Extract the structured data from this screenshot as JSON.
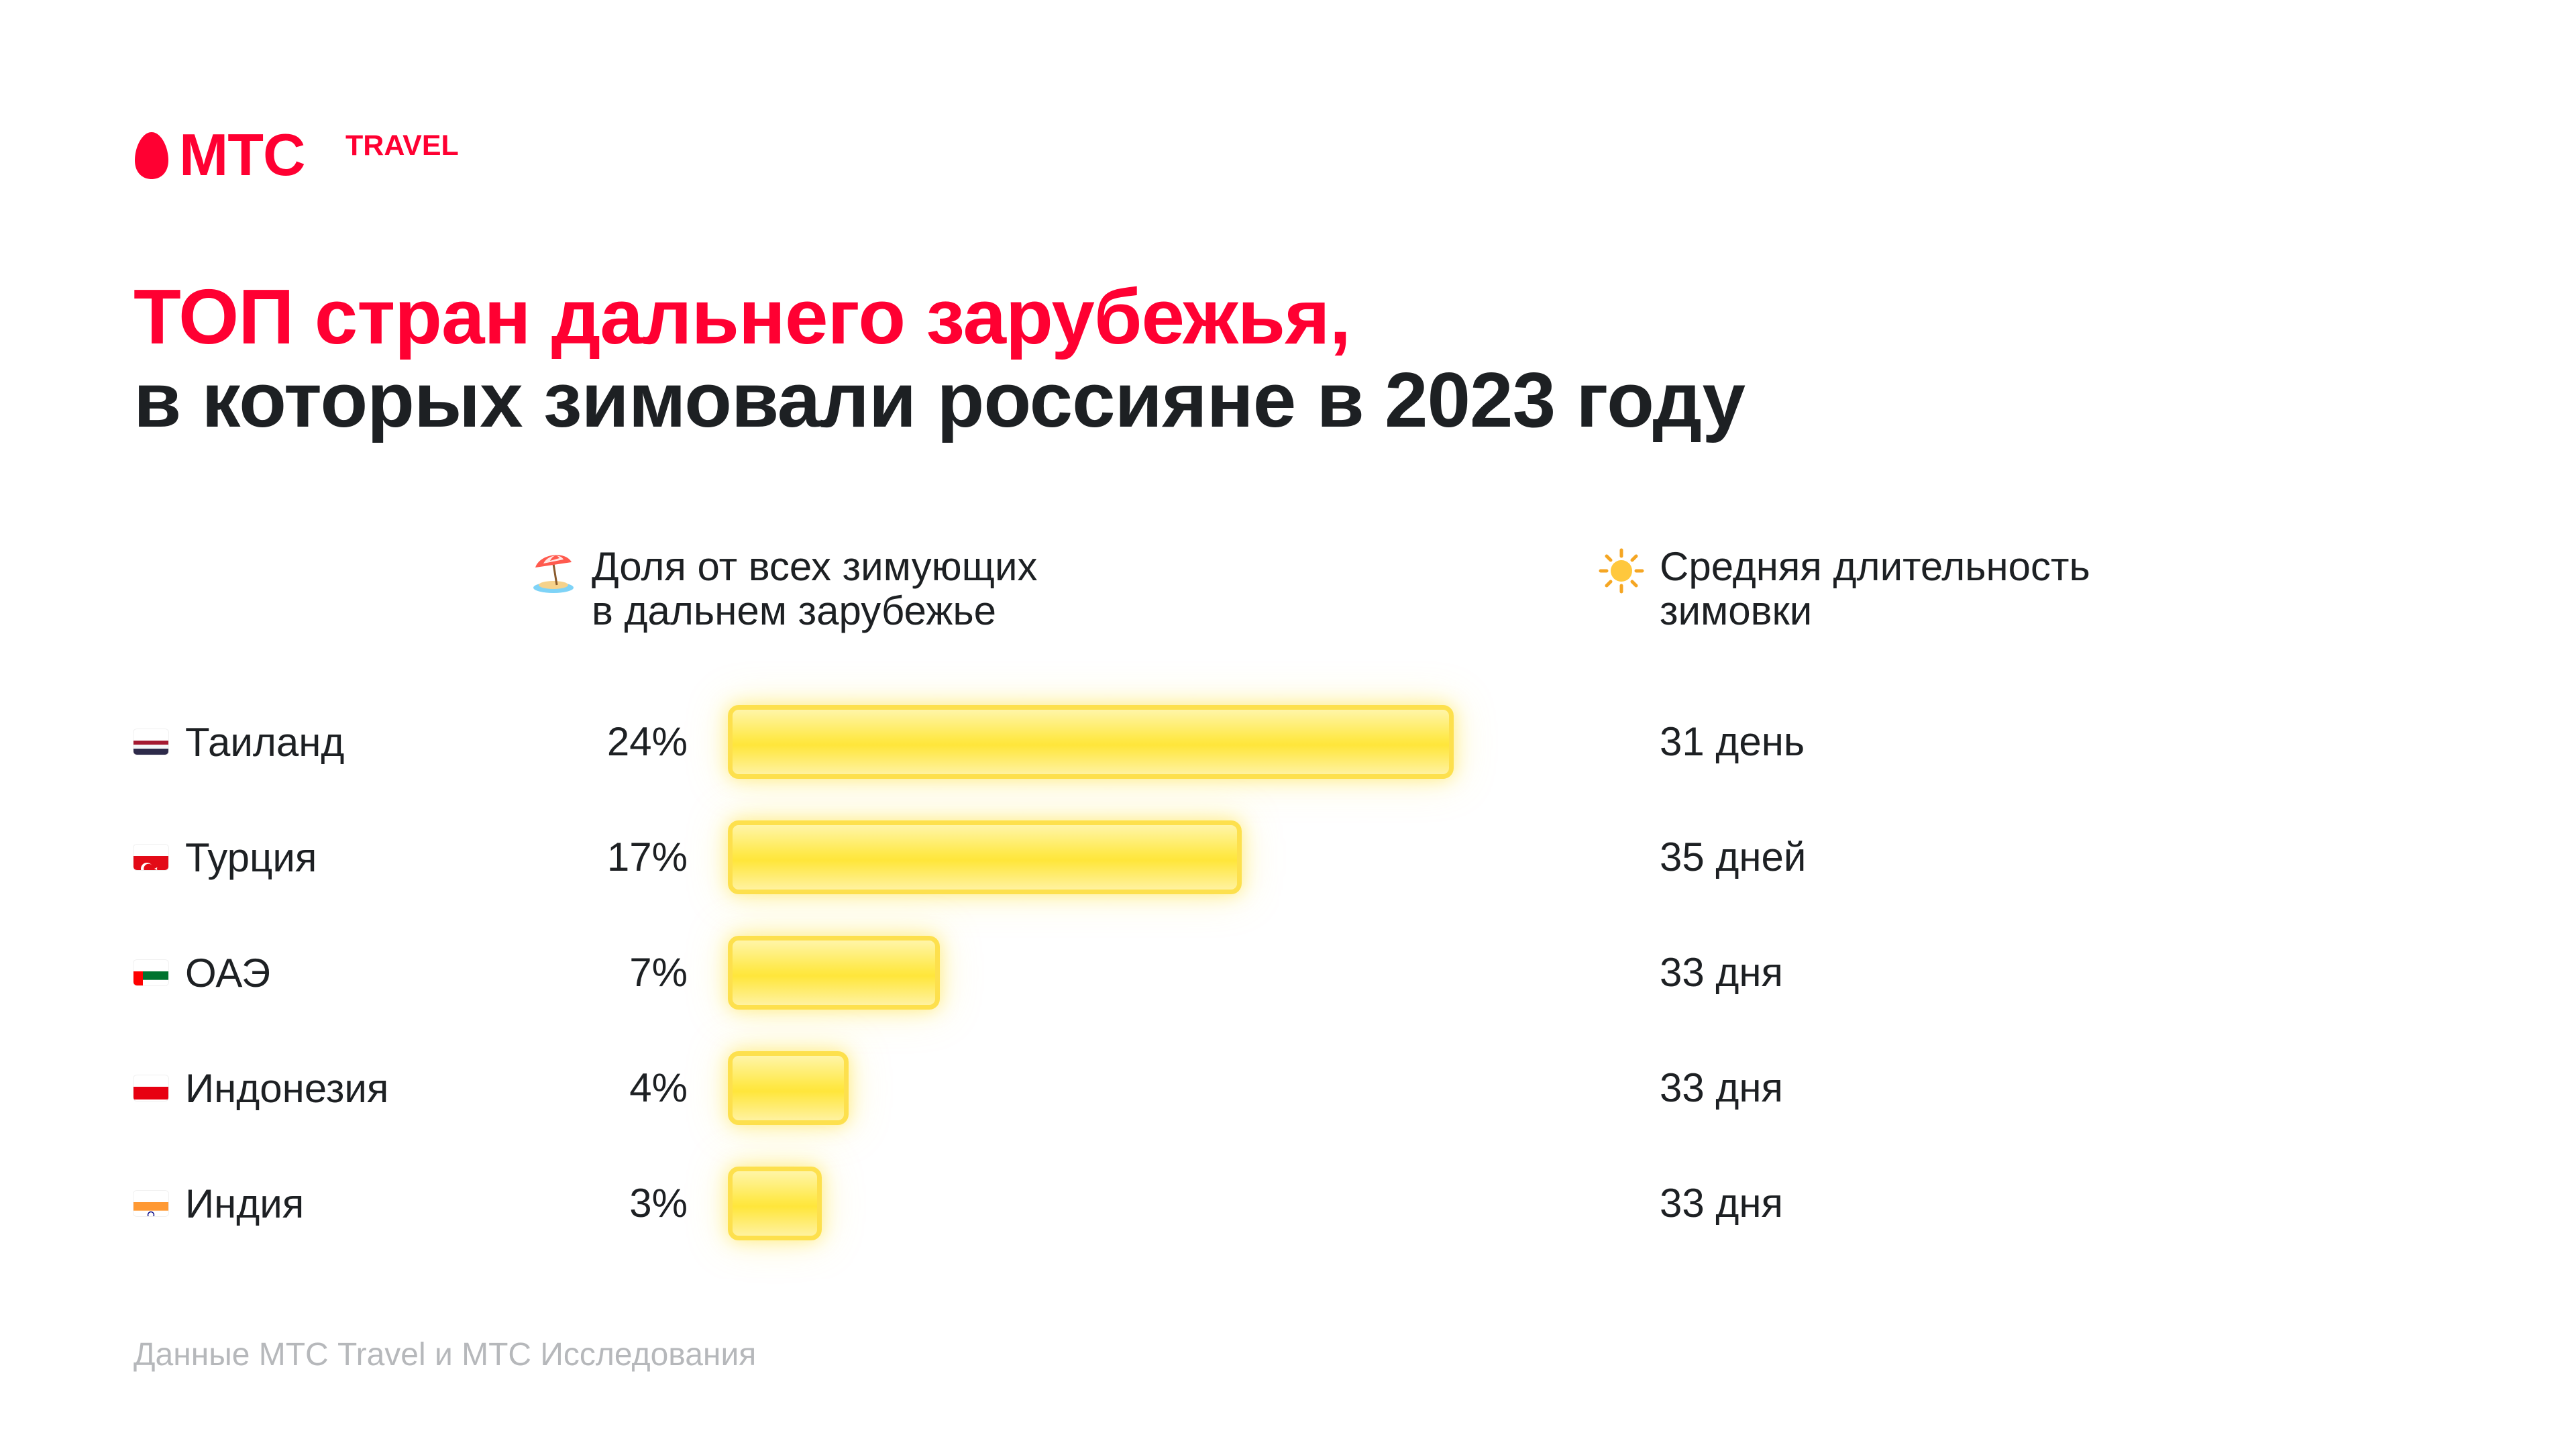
{
  "brand": {
    "name": "МТС",
    "suffix": "TRAVEL",
    "color": "#ff0032"
  },
  "title": {
    "line1": "ТОП стран дальнего зарубежья,",
    "line2": "в которых зимовали россияне в 2023 году",
    "line1_color": "#ff0032",
    "line2_color": "#1d2023"
  },
  "headers": {
    "share": {
      "icon": "beach-umbrella-icon",
      "line1": "Доля от всех зимующих",
      "line2": "в дальнем зарубежье"
    },
    "duration": {
      "icon": "sun-icon",
      "line1": "Средняя длительность",
      "line2": "зимовки"
    }
  },
  "chart_data": {
    "type": "bar",
    "orientation": "horizontal",
    "categories": [
      "Таиланд",
      "Турция",
      "ОАЭ",
      "Индонезия",
      "Индия"
    ],
    "series": [
      {
        "values": [
          24,
          17,
          7,
          4,
          3
        ],
        "labels": [
          "24%",
          "17%",
          "7%",
          "4%",
          "3%"
        ]
      }
    ],
    "duration_labels": [
      "31 день",
      "35 дней",
      "33 дня",
      "33 дня",
      "33 дня"
    ],
    "flags": [
      "flag-thailand-icon",
      "flag-turkey-icon",
      "flag-uae-icon",
      "flag-indonesia-icon",
      "flag-india-icon"
    ],
    "bar_color": "#ffe63b",
    "bar_border_color": "#fde04d",
    "xlim": [
      0,
      24
    ]
  },
  "source": "Данные МТС Travel и МТС Исследования"
}
